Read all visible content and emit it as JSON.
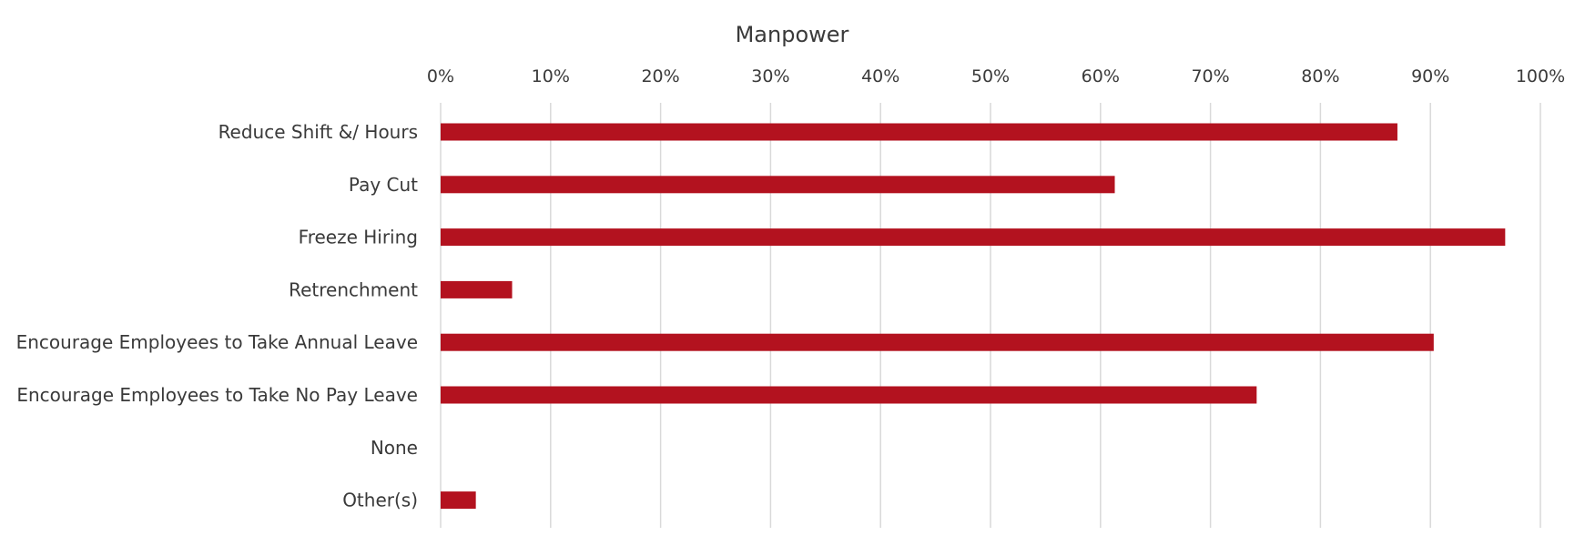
{
  "chart_data": {
    "type": "bar",
    "orientation": "horizontal",
    "title": "Manpower",
    "xlabel": "",
    "ylabel": "",
    "xlim": [
      0,
      100
    ],
    "x_ticks": [
      "0%",
      "10%",
      "20%",
      "30%",
      "40%",
      "50%",
      "60%",
      "70%",
      "80%",
      "90%",
      "100%"
    ],
    "x_axis_position": "top",
    "grid": true,
    "legend": "none",
    "categories": [
      "Reduce Shift &/ Hours",
      "Pay Cut",
      "Freeze Hiring",
      "Retrenchment",
      "Encourage Employees to Take Annual Leave",
      "Encourage Employees to Take No Pay Leave",
      "None",
      "Other(s)"
    ],
    "values": [
      87,
      61.3,
      96.8,
      6.5,
      90.3,
      74.2,
      0,
      3.2
    ],
    "unit": "%",
    "bar_color": "#b3121f"
  }
}
